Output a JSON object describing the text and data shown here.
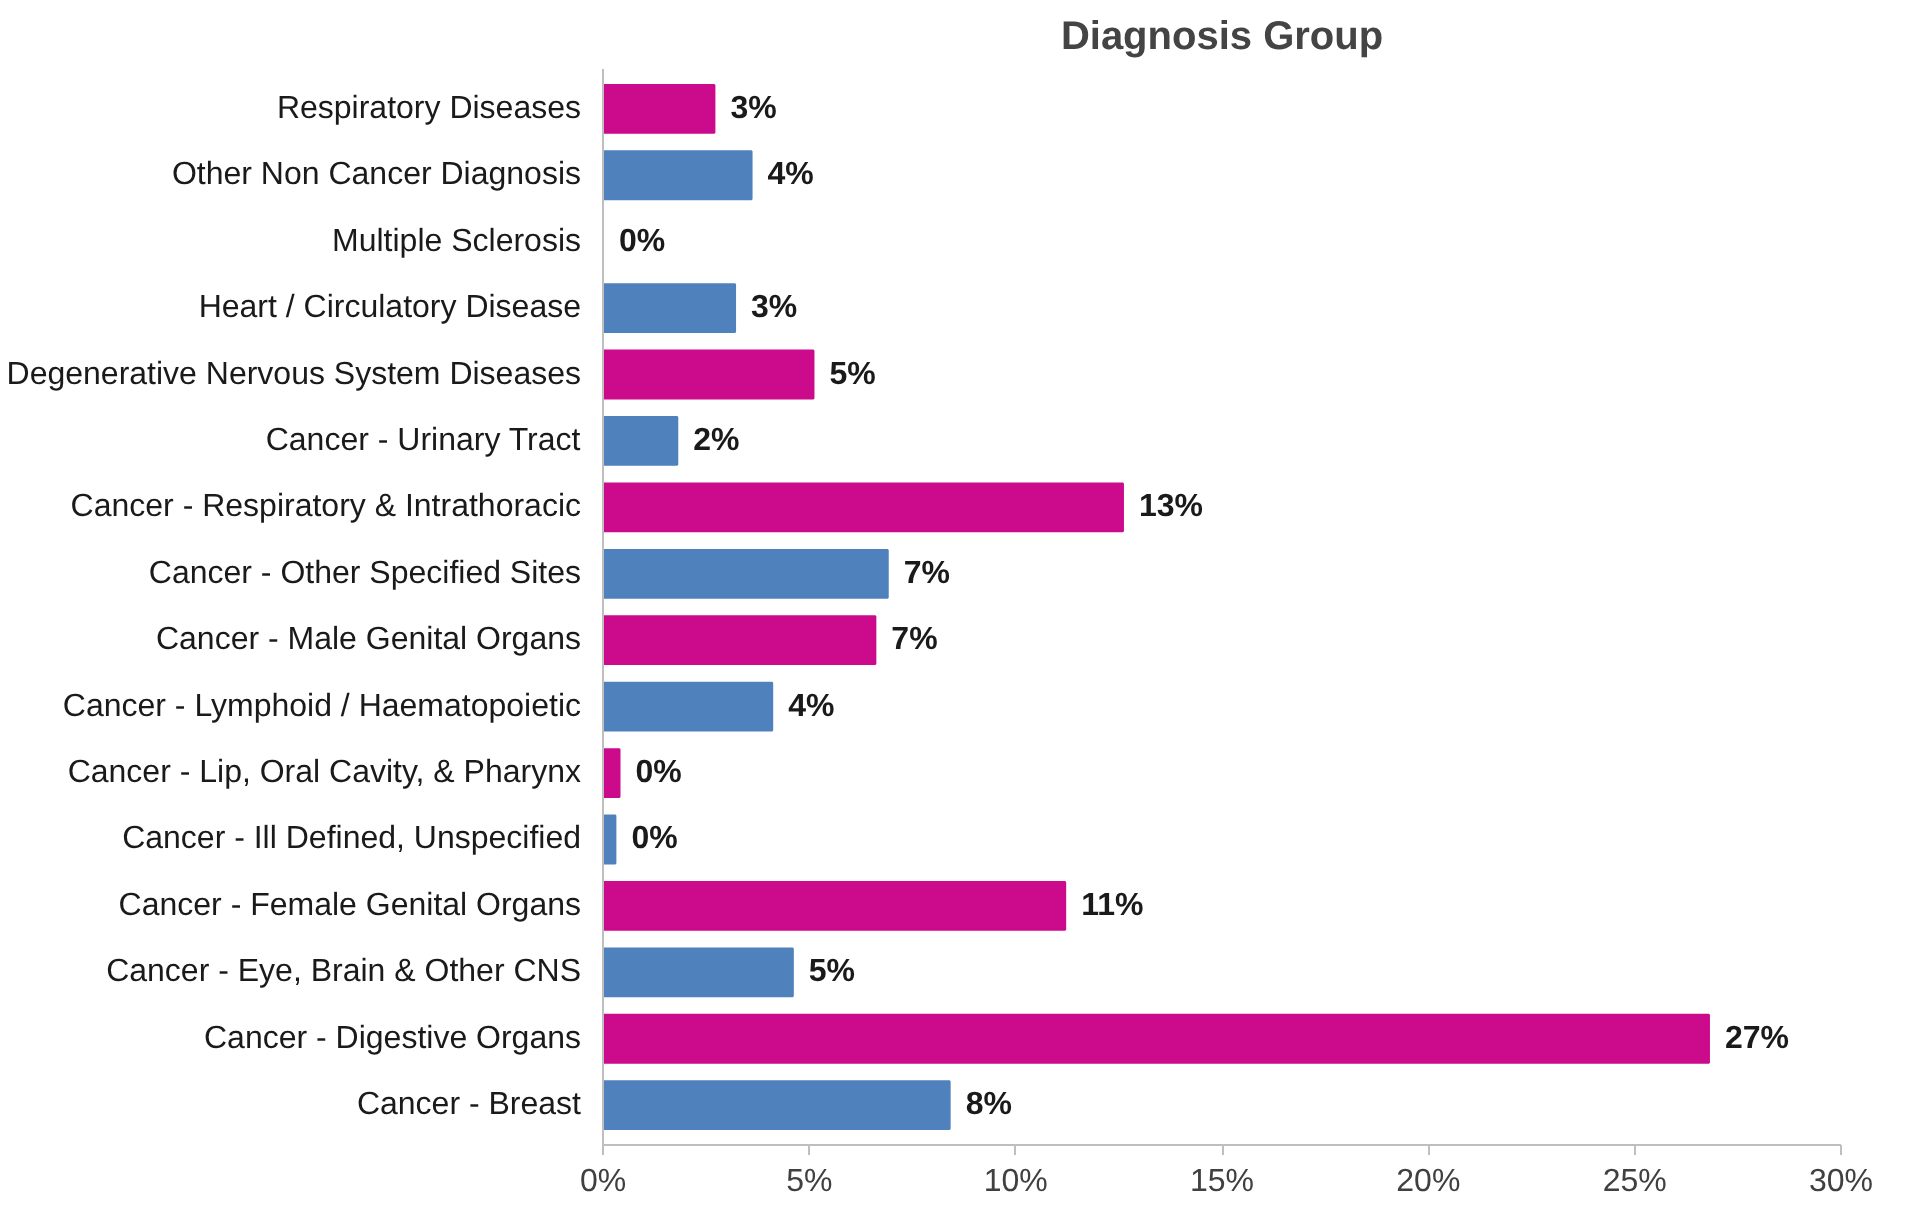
{
  "chart_data": {
    "type": "bar",
    "orientation": "horizontal",
    "title": "Diagnosis Group",
    "categories": [
      "Respiratory Diseases",
      "Other Non Cancer Diagnosis",
      "Multiple Sclerosis",
      "Heart / Circulatory Disease",
      "Degenerative Nervous System Diseases",
      "Cancer - Urinary Tract",
      "Cancer - Respiratory & Intrathoracic",
      "Cancer - Other Specified Sites",
      "Cancer - Male Genital Organs",
      "Cancer - Lymphoid / Haematopoietic",
      "Cancer - Lip, Oral Cavity, & Pharynx",
      "Cancer - Ill Defined, Unspecified",
      "Cancer - Female Genital Organs",
      "Cancer - Eye, Brain & Other CNS",
      "Cancer - Digestive Organs",
      "Cancer - Breast"
    ],
    "values": [
      2.7,
      3.6,
      0,
      3.2,
      5.1,
      1.8,
      12.6,
      6.9,
      6.6,
      4.1,
      0.4,
      0.3,
      11.2,
      4.6,
      26.8,
      8.4
    ],
    "value_labels": [
      "3%",
      "4%",
      "0%",
      "3%",
      "5%",
      "2%",
      "13%",
      "7%",
      "7%",
      "4%",
      "0%",
      "0%",
      "11%",
      "5%",
      "27%",
      "8%"
    ],
    "colors": [
      "#cc0a8c",
      "#4f81bd",
      "#4f81bd",
      "#4f81bd",
      "#cc0a8c",
      "#4f81bd",
      "#cc0a8c",
      "#4f81bd",
      "#cc0a8c",
      "#4f81bd",
      "#cc0a8c",
      "#4f81bd",
      "#cc0a8c",
      "#4f81bd",
      "#cc0a8c",
      "#4f81bd"
    ],
    "xlim": [
      0,
      30
    ],
    "xticks": [
      {
        "value": 0,
        "label": "0%"
      },
      {
        "value": 5,
        "label": "5%"
      },
      {
        "value": 10,
        "label": "10%"
      },
      {
        "value": 15,
        "label": "15%"
      },
      {
        "value": 20,
        "label": "20%"
      },
      {
        "value": 25,
        "label": "25%"
      },
      {
        "value": 30,
        "label": "30%"
      }
    ],
    "grid": false
  }
}
